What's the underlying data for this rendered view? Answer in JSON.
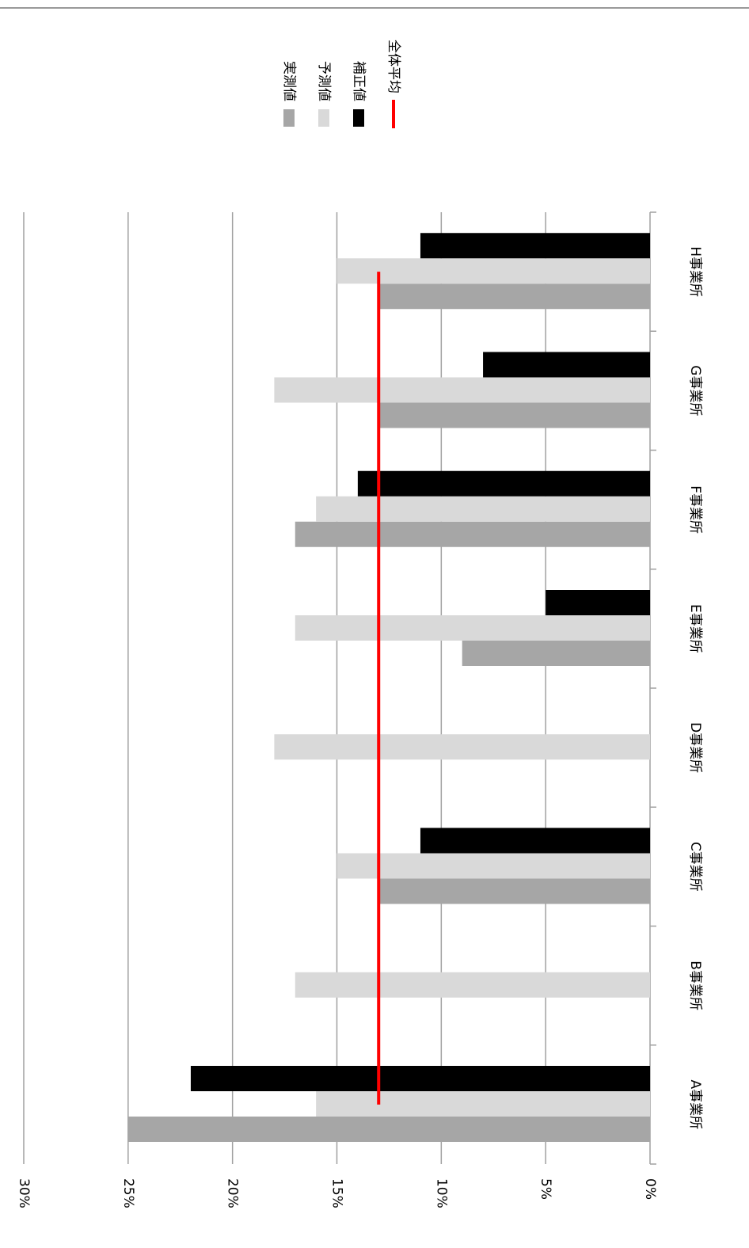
{
  "chart_data": {
    "type": "bar",
    "orientation": "horizontal",
    "categories": [
      "A事業所",
      "B事業所",
      "C事業所",
      "D事業所",
      "E事業所",
      "F事業所",
      "G事業所",
      "H事業所"
    ],
    "series": [
      {
        "name": "実測値",
        "color": "#a6a6a6",
        "values": [
          25,
          null,
          13,
          null,
          9,
          17,
          13,
          13
        ]
      },
      {
        "name": "予測値",
        "color": "#d9d9d9",
        "values": [
          16,
          17,
          15,
          18,
          17,
          16,
          18,
          15
        ]
      },
      {
        "name": "補正値",
        "color": "#000000",
        "values": [
          22,
          null,
          11,
          null,
          5,
          14,
          8,
          11
        ]
      },
      {
        "name": "全体平均",
        "color": "#ff0000",
        "type": "line",
        "values": [
          13,
          13,
          13,
          13,
          13,
          13,
          13,
          13
        ]
      }
    ],
    "ylim": [
      0,
      30
    ],
    "yticks": [
      {
        "value": 0,
        "label": "0%"
      },
      {
        "value": 5,
        "label": "5%"
      },
      {
        "value": 10,
        "label": "10%"
      },
      {
        "value": 15,
        "label": "15%"
      },
      {
        "value": 20,
        "label": "20%"
      },
      {
        "value": 25,
        "label": "25%"
      },
      {
        "value": 30,
        "label": "30%"
      }
    ],
    "grid": true
  }
}
